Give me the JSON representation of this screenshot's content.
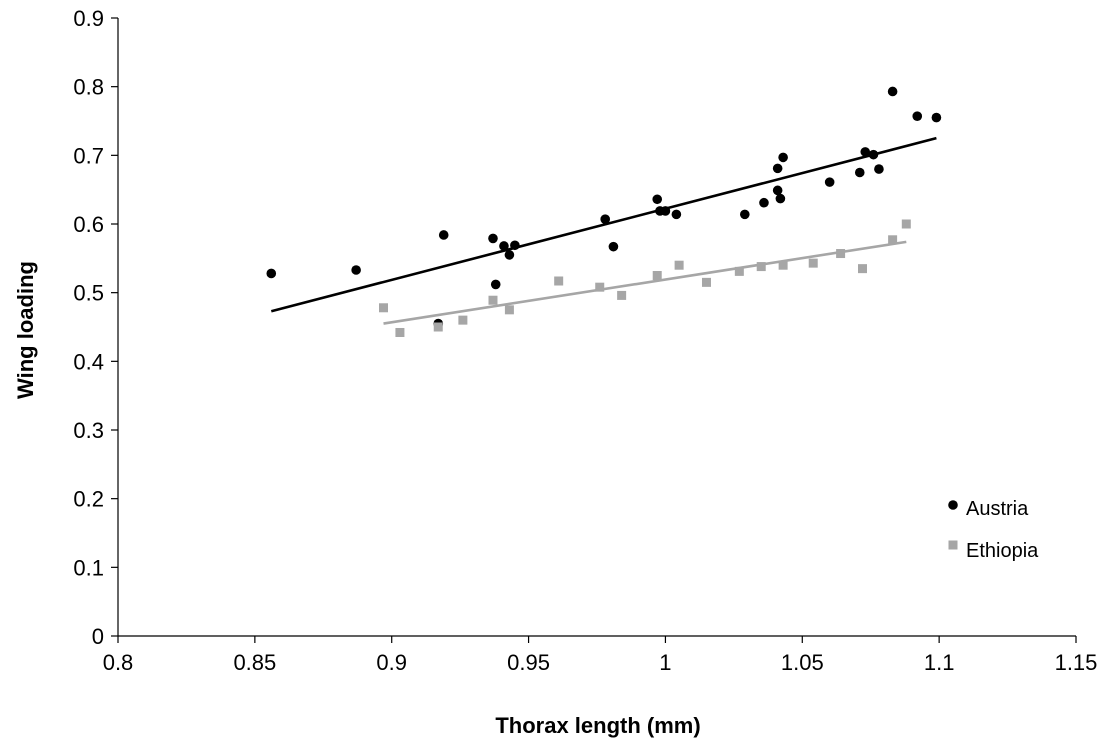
{
  "chart_data": {
    "type": "scatter",
    "title": "",
    "xlabel": "Thorax length (mm)",
    "ylabel": "Wing loading",
    "xlim": [
      0.8,
      1.15
    ],
    "ylim": [
      0,
      0.9
    ],
    "xticks": [
      0.8,
      0.85,
      0.9,
      0.95,
      1.0,
      1.05,
      1.1,
      1.15
    ],
    "xtick_labels": [
      "0.8",
      "0.85",
      "0.9",
      "0.95",
      "1",
      "1.05",
      "1.1",
      "1.15"
    ],
    "yticks": [
      0,
      0.1,
      0.2,
      0.3,
      0.4,
      0.5,
      0.6,
      0.7,
      0.8,
      0.9
    ],
    "ytick_labels": [
      "0",
      "0.1",
      "0.2",
      "0.3",
      "0.4",
      "0.5",
      "0.6",
      "0.7",
      "0.8",
      "0.9"
    ],
    "grid": false,
    "legend_position": "bottom-right",
    "series": [
      {
        "name": "Austria",
        "marker": "circle",
        "color": "#000000",
        "points": [
          [
            0.856,
            0.528
          ],
          [
            0.887,
            0.533
          ],
          [
            0.919,
            0.584
          ],
          [
            0.917,
            0.455
          ],
          [
            0.937,
            0.579
          ],
          [
            0.938,
            0.512
          ],
          [
            0.941,
            0.568
          ],
          [
            0.943,
            0.555
          ],
          [
            0.945,
            0.569
          ],
          [
            0.978,
            0.607
          ],
          [
            0.981,
            0.567
          ],
          [
            0.997,
            0.636
          ],
          [
            0.998,
            0.619
          ],
          [
            1.0,
            0.619
          ],
          [
            1.004,
            0.614
          ],
          [
            1.029,
            0.614
          ],
          [
            1.036,
            0.631
          ],
          [
            1.041,
            0.681
          ],
          [
            1.041,
            0.649
          ],
          [
            1.042,
            0.637
          ],
          [
            1.043,
            0.697
          ],
          [
            1.06,
            0.661
          ],
          [
            1.071,
            0.675
          ],
          [
            1.073,
            0.705
          ],
          [
            1.076,
            0.701
          ],
          [
            1.078,
            0.68
          ],
          [
            1.083,
            0.793
          ],
          [
            1.092,
            0.757
          ],
          [
            1.099,
            0.755
          ]
        ],
        "trendline": {
          "x": [
            0.856,
            1.099
          ],
          "y": [
            0.473,
            0.725
          ]
        }
      },
      {
        "name": "Ethiopia",
        "marker": "square",
        "color": "#a6a6a6",
        "points": [
          [
            0.897,
            0.478
          ],
          [
            0.903,
            0.442
          ],
          [
            0.917,
            0.45
          ],
          [
            0.926,
            0.46
          ],
          [
            0.937,
            0.489
          ],
          [
            0.943,
            0.475
          ],
          [
            0.961,
            0.517
          ],
          [
            0.976,
            0.508
          ],
          [
            0.984,
            0.496
          ],
          [
            0.997,
            0.525
          ],
          [
            1.005,
            0.54
          ],
          [
            1.015,
            0.515
          ],
          [
            1.027,
            0.531
          ],
          [
            1.035,
            0.538
          ],
          [
            1.043,
            0.54
          ],
          [
            1.054,
            0.543
          ],
          [
            1.064,
            0.557
          ],
          [
            1.072,
            0.535
          ],
          [
            1.083,
            0.577
          ],
          [
            1.088,
            0.6
          ]
        ],
        "trendline": {
          "x": [
            0.897,
            1.088
          ],
          "y": [
            0.455,
            0.574
          ]
        }
      }
    ]
  }
}
